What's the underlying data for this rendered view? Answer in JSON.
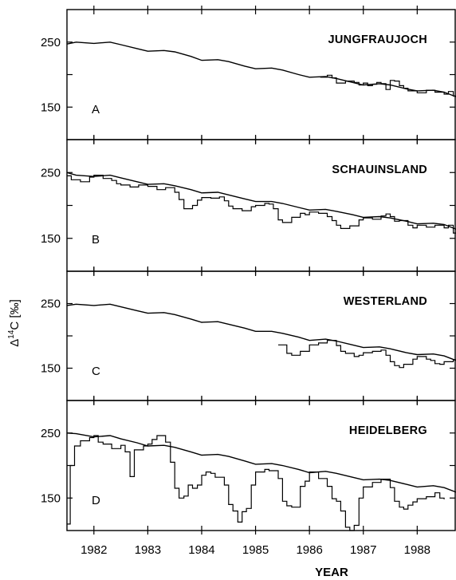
{
  "chart_data": {
    "type": "line",
    "ylabel": "Δ14C [‰]",
    "xlabel": "YEAR",
    "x_ticks": [
      1982,
      1983,
      1984,
      1985,
      1986,
      1987,
      1988
    ],
    "xlim": [
      1981.5,
      1988.72
    ],
    "y_ticks": [
      150,
      250
    ],
    "ylim": [
      100,
      300
    ],
    "panels": [
      {
        "letter": "A",
        "station": "JUNGFRAUJOCH",
        "trend": [
          [
            1981.5,
            247
          ],
          [
            1981.67,
            250
          ],
          [
            1982.0,
            248
          ],
          [
            1982.3,
            250
          ],
          [
            1982.5,
            246
          ],
          [
            1982.8,
            240
          ],
          [
            1983.0,
            236
          ],
          [
            1983.3,
            237
          ],
          [
            1983.5,
            235
          ],
          [
            1983.8,
            228
          ],
          [
            1984.0,
            222
          ],
          [
            1984.3,
            223
          ],
          [
            1984.5,
            220
          ],
          [
            1984.8,
            213
          ],
          [
            1985.0,
            209
          ],
          [
            1985.3,
            210
          ],
          [
            1985.5,
            207
          ],
          [
            1985.8,
            200
          ],
          [
            1986.0,
            196
          ],
          [
            1986.3,
            197
          ],
          [
            1986.5,
            194
          ],
          [
            1986.8,
            188
          ],
          [
            1987.0,
            184
          ],
          [
            1987.3,
            186
          ],
          [
            1987.5,
            184
          ],
          [
            1987.8,
            178
          ],
          [
            1988.0,
            175
          ],
          [
            1988.3,
            176
          ],
          [
            1988.5,
            173
          ],
          [
            1988.72,
            166
          ]
        ],
        "measured": [
          [
            1986.2,
            196
          ],
          [
            1986.33,
            199
          ],
          [
            1986.42,
            195
          ],
          [
            1986.5,
            187
          ],
          [
            1986.67,
            190
          ],
          [
            1986.83,
            188
          ],
          [
            1986.92,
            184
          ],
          [
            1987.0,
            187
          ],
          [
            1987.08,
            183
          ],
          [
            1987.17,
            185
          ],
          [
            1987.25,
            188
          ],
          [
            1987.33,
            186
          ],
          [
            1987.42,
            177
          ],
          [
            1987.5,
            191
          ],
          [
            1987.58,
            190
          ],
          [
            1987.67,
            183
          ],
          [
            1987.75,
            179
          ],
          [
            1987.83,
            175
          ],
          [
            1988.0,
            172
          ],
          [
            1988.17,
            176
          ],
          [
            1988.33,
            173
          ],
          [
            1988.5,
            170
          ],
          [
            1988.58,
            174
          ],
          [
            1988.67,
            167
          ],
          [
            1988.72,
            167
          ]
        ]
      },
      {
        "letter": "B",
        "station": "SCHAUINSLAND",
        "trend": [
          [
            1981.5,
            250
          ],
          [
            1981.67,
            246
          ],
          [
            1982.0,
            244
          ],
          [
            1982.3,
            246
          ],
          [
            1982.5,
            242
          ],
          [
            1982.8,
            236
          ],
          [
            1983.0,
            232
          ],
          [
            1983.3,
            233
          ],
          [
            1983.5,
            230
          ],
          [
            1983.8,
            224
          ],
          [
            1984.0,
            219
          ],
          [
            1984.3,
            220
          ],
          [
            1984.5,
            216
          ],
          [
            1984.8,
            210
          ],
          [
            1985.0,
            206
          ],
          [
            1985.3,
            206
          ],
          [
            1985.5,
            203
          ],
          [
            1985.8,
            197
          ],
          [
            1986.0,
            193
          ],
          [
            1986.3,
            194
          ],
          [
            1986.5,
            191
          ],
          [
            1986.8,
            186
          ],
          [
            1987.0,
            182
          ],
          [
            1987.3,
            183
          ],
          [
            1987.5,
            181
          ],
          [
            1987.8,
            176
          ],
          [
            1988.0,
            172
          ],
          [
            1988.3,
            173
          ],
          [
            1988.5,
            171
          ],
          [
            1988.72,
            164
          ]
        ],
        "measured": [
          [
            1981.5,
            245
          ],
          [
            1981.58,
            239
          ],
          [
            1981.75,
            236
          ],
          [
            1981.92,
            243
          ],
          [
            1982.0,
            246
          ],
          [
            1982.17,
            241
          ],
          [
            1982.33,
            238
          ],
          [
            1982.42,
            233
          ],
          [
            1982.5,
            231
          ],
          [
            1982.67,
            228
          ],
          [
            1982.83,
            231
          ],
          [
            1983.0,
            229
          ],
          [
            1983.17,
            224
          ],
          [
            1983.33,
            227
          ],
          [
            1983.5,
            220
          ],
          [
            1983.58,
            209
          ],
          [
            1983.67,
            195
          ],
          [
            1983.83,
            200
          ],
          [
            1983.92,
            208
          ],
          [
            1984.0,
            212
          ],
          [
            1984.17,
            211
          ],
          [
            1984.33,
            213
          ],
          [
            1984.42,
            207
          ],
          [
            1984.5,
            199
          ],
          [
            1984.58,
            195
          ],
          [
            1984.75,
            192
          ],
          [
            1984.92,
            198
          ],
          [
            1985.0,
            200
          ],
          [
            1985.17,
            203
          ],
          [
            1985.25,
            202
          ],
          [
            1985.33,
            195
          ],
          [
            1985.42,
            178
          ],
          [
            1985.5,
            174
          ],
          [
            1985.67,
            182
          ],
          [
            1985.83,
            188
          ],
          [
            1985.92,
            186
          ],
          [
            1986.0,
            190
          ],
          [
            1986.17,
            188
          ],
          [
            1986.33,
            183
          ],
          [
            1986.42,
            177
          ],
          [
            1986.5,
            170
          ],
          [
            1986.58,
            165
          ],
          [
            1986.75,
            169
          ],
          [
            1986.92,
            178
          ],
          [
            1987.0,
            181
          ],
          [
            1987.17,
            179
          ],
          [
            1987.33,
            184
          ],
          [
            1987.42,
            187
          ],
          [
            1987.5,
            183
          ],
          [
            1987.58,
            176
          ],
          [
            1987.67,
            177
          ],
          [
            1987.83,
            170
          ],
          [
            1987.92,
            166
          ],
          [
            1988.0,
            170
          ],
          [
            1988.17,
            167
          ],
          [
            1988.33,
            170
          ],
          [
            1988.5,
            166
          ],
          [
            1988.58,
            170
          ],
          [
            1988.67,
            158
          ],
          [
            1988.72,
            158
          ]
        ]
      },
      {
        "letter": "C",
        "station": "WESTERLAND",
        "trend": [
          [
            1981.5,
            247
          ],
          [
            1981.67,
            249
          ],
          [
            1982.0,
            247
          ],
          [
            1982.3,
            249
          ],
          [
            1982.5,
            245
          ],
          [
            1982.8,
            239
          ],
          [
            1983.0,
            235
          ],
          [
            1983.3,
            236
          ],
          [
            1983.5,
            233
          ],
          [
            1983.8,
            226
          ],
          [
            1984.0,
            221
          ],
          [
            1984.3,
            222
          ],
          [
            1984.5,
            218
          ],
          [
            1984.8,
            212
          ],
          [
            1985.0,
            207
          ],
          [
            1985.3,
            207
          ],
          [
            1985.5,
            204
          ],
          [
            1985.8,
            198
          ],
          [
            1986.0,
            193
          ],
          [
            1986.3,
            195
          ],
          [
            1986.5,
            192
          ],
          [
            1986.8,
            186
          ],
          [
            1987.0,
            182
          ],
          [
            1987.3,
            183
          ],
          [
            1987.5,
            180
          ],
          [
            1987.8,
            174
          ],
          [
            1988.0,
            171
          ],
          [
            1988.3,
            172
          ],
          [
            1988.5,
            169
          ],
          [
            1988.72,
            162
          ]
        ],
        "measured": [
          [
            1985.42,
            186
          ],
          [
            1985.58,
            173
          ],
          [
            1985.67,
            170
          ],
          [
            1985.83,
            176
          ],
          [
            1986.0,
            186
          ],
          [
            1986.17,
            189
          ],
          [
            1986.33,
            193
          ],
          [
            1986.5,
            185
          ],
          [
            1986.58,
            176
          ],
          [
            1986.67,
            173
          ],
          [
            1986.83,
            168
          ],
          [
            1986.92,
            170
          ],
          [
            1987.0,
            174
          ],
          [
            1987.17,
            176
          ],
          [
            1987.33,
            178
          ],
          [
            1987.42,
            170
          ],
          [
            1987.5,
            160
          ],
          [
            1987.58,
            154
          ],
          [
            1987.67,
            151
          ],
          [
            1987.75,
            156
          ],
          [
            1987.92,
            164
          ],
          [
            1988.0,
            168
          ],
          [
            1988.17,
            164
          ],
          [
            1988.25,
            162
          ],
          [
            1988.33,
            157
          ],
          [
            1988.42,
            156
          ],
          [
            1988.5,
            160
          ],
          [
            1988.67,
            163
          ],
          [
            1988.75,
            164
          ]
        ]
      },
      {
        "letter": "D",
        "station": "HEIDELBERG",
        "trend": [
          [
            1981.5,
            250
          ],
          [
            1981.67,
            249
          ],
          [
            1982.0,
            244
          ],
          [
            1982.3,
            246
          ],
          [
            1982.5,
            241
          ],
          [
            1982.8,
            235
          ],
          [
            1983.0,
            230
          ],
          [
            1983.3,
            231
          ],
          [
            1983.5,
            228
          ],
          [
            1983.8,
            221
          ],
          [
            1984.0,
            216
          ],
          [
            1984.3,
            217
          ],
          [
            1984.5,
            214
          ],
          [
            1984.8,
            207
          ],
          [
            1985.0,
            202
          ],
          [
            1985.3,
            203
          ],
          [
            1985.5,
            200
          ],
          [
            1985.8,
            194
          ],
          [
            1986.0,
            189
          ],
          [
            1986.3,
            191
          ],
          [
            1986.5,
            188
          ],
          [
            1986.8,
            182
          ],
          [
            1987.0,
            178
          ],
          [
            1987.3,
            179
          ],
          [
            1987.5,
            177
          ],
          [
            1987.8,
            171
          ],
          [
            1988.0,
            167
          ],
          [
            1988.3,
            169
          ],
          [
            1988.5,
            166
          ],
          [
            1988.72,
            159
          ]
        ],
        "measured": [
          [
            1981.5,
            110
          ],
          [
            1981.56,
            200
          ],
          [
            1981.64,
            230
          ],
          [
            1981.75,
            238
          ],
          [
            1981.92,
            243
          ],
          [
            1982.0,
            246
          ],
          [
            1982.08,
            236
          ],
          [
            1982.17,
            233
          ],
          [
            1982.33,
            226
          ],
          [
            1982.5,
            231
          ],
          [
            1982.58,
            221
          ],
          [
            1982.67,
            183
          ],
          [
            1982.75,
            224
          ],
          [
            1982.92,
            230
          ],
          [
            1983.0,
            233
          ],
          [
            1983.08,
            240
          ],
          [
            1983.17,
            246
          ],
          [
            1983.33,
            236
          ],
          [
            1983.42,
            205
          ],
          [
            1983.5,
            165
          ],
          [
            1983.58,
            150
          ],
          [
            1983.67,
            153
          ],
          [
            1983.75,
            170
          ],
          [
            1983.83,
            165
          ],
          [
            1983.92,
            170
          ],
          [
            1984.0,
            185
          ],
          [
            1984.08,
            190
          ],
          [
            1984.17,
            188
          ],
          [
            1984.25,
            182
          ],
          [
            1984.42,
            170
          ],
          [
            1984.5,
            140
          ],
          [
            1984.58,
            130
          ],
          [
            1984.67,
            113
          ],
          [
            1984.75,
            129
          ],
          [
            1984.83,
            134
          ],
          [
            1984.92,
            170
          ],
          [
            1985.0,
            190
          ],
          [
            1985.17,
            194
          ],
          [
            1985.25,
            192
          ],
          [
            1985.42,
            180
          ],
          [
            1985.5,
            145
          ],
          [
            1985.58,
            138
          ],
          [
            1985.67,
            136
          ],
          [
            1985.83,
            168
          ],
          [
            1985.92,
            176
          ],
          [
            1986.0,
            190
          ],
          [
            1986.17,
            180
          ],
          [
            1986.33,
            168
          ],
          [
            1986.42,
            149
          ],
          [
            1986.5,
            145
          ],
          [
            1986.58,
            130
          ],
          [
            1986.67,
            105
          ],
          [
            1986.75,
            100
          ],
          [
            1986.83,
            108
          ],
          [
            1986.92,
            150
          ],
          [
            1987.0,
            167
          ],
          [
            1987.17,
            174
          ],
          [
            1987.33,
            179
          ],
          [
            1987.5,
            166
          ],
          [
            1987.58,
            145
          ],
          [
            1987.67,
            136
          ],
          [
            1987.75,
            133
          ],
          [
            1987.83,
            139
          ],
          [
            1987.92,
            144
          ],
          [
            1988.0,
            149
          ],
          [
            1988.17,
            152
          ],
          [
            1988.33,
            158
          ],
          [
            1988.42,
            150
          ],
          [
            1988.5,
            148
          ]
        ]
      }
    ]
  }
}
